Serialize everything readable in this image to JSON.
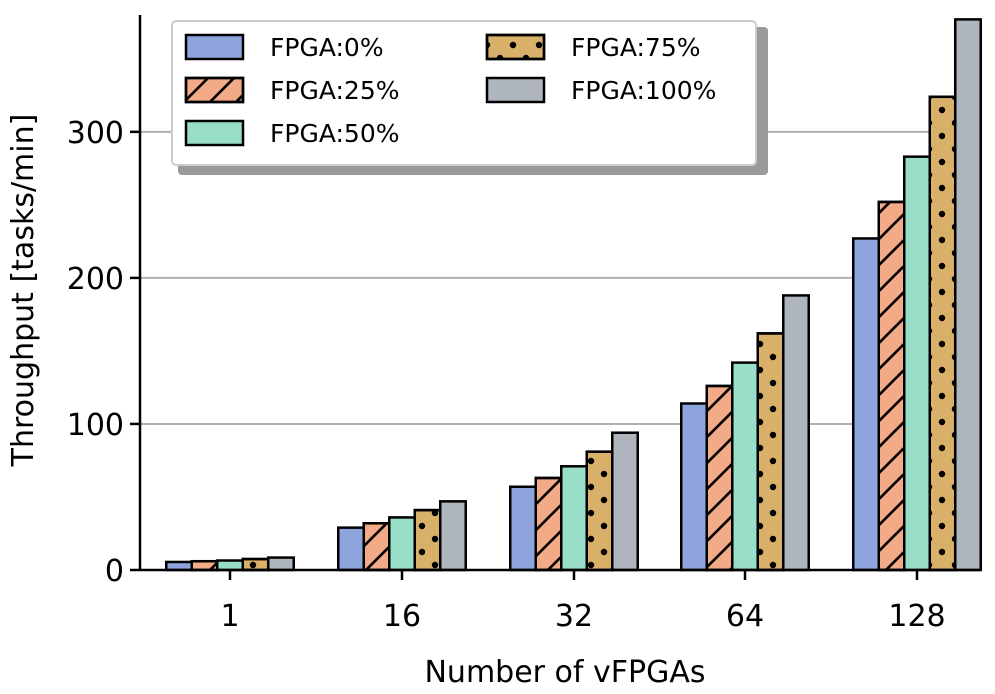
{
  "chart_data": {
    "type": "bar",
    "xlabel": "Number of vFPGAs",
    "ylabel": "Throughput [tasks/min]",
    "categories": [
      "1",
      "16",
      "32",
      "64",
      "128"
    ],
    "ylim": [
      0,
      380
    ],
    "yticks": [
      0,
      100,
      200,
      300
    ],
    "grid": "horizontal",
    "legend_position": "top-left",
    "series": [
      {
        "name": "FPGA:0%",
        "color": "#8da5dc",
        "hatch": "none",
        "values": [
          5.5,
          29,
          57,
          114,
          227
        ]
      },
      {
        "name": "FPGA:25%",
        "color": "#f3aa86",
        "hatch": "diagonal",
        "values": [
          6,
          32,
          63,
          126,
          252
        ]
      },
      {
        "name": "FPGA:50%",
        "color": "#99dec8",
        "hatch": "none",
        "values": [
          6.5,
          36,
          71,
          142,
          283
        ]
      },
      {
        "name": "FPGA:75%",
        "color": "#d9b06a",
        "hatch": "dots",
        "values": [
          7.5,
          41,
          81,
          162,
          324
        ]
      },
      {
        "name": "FPGA:100%",
        "color": "#aeb5bd",
        "hatch": "none",
        "values": [
          8.5,
          47,
          94,
          188,
          377
        ]
      }
    ]
  }
}
